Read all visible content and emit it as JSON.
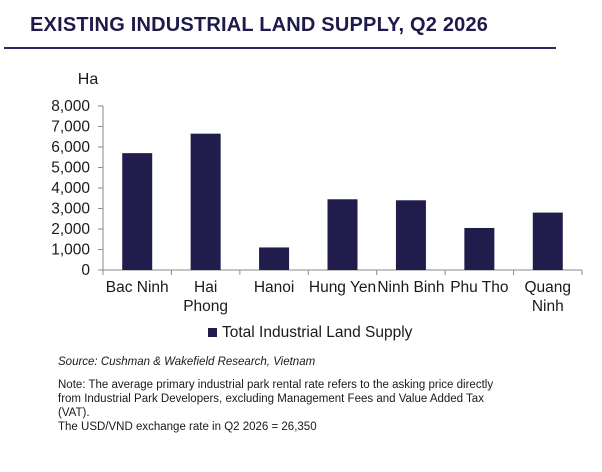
{
  "header": {
    "title": "EXISTING INDUSTRIAL LAND SUPPLY, Q2 2026"
  },
  "chart_data": {
    "type": "bar",
    "unit_label": "Ha",
    "categories": [
      [
        "Bac Ninh"
      ],
      [
        "Hai",
        "Phong"
      ],
      [
        "Hanoi"
      ],
      [
        "Hung Yen"
      ],
      [
        "Ninh Binh"
      ],
      [
        "Phu Tho"
      ],
      [
        "Quang",
        "Ninh"
      ]
    ],
    "series": [
      {
        "name": "Total Industrial Land Supply",
        "values": [
          5700,
          6650,
          1100,
          3450,
          3400,
          2050,
          2800
        ]
      }
    ],
    "ylim": [
      0,
      8000
    ],
    "yticks": [
      "0",
      "1,000",
      "2,000",
      "3,000",
      "4,000",
      "5,000",
      "6,000",
      "7,000",
      "8,000"
    ],
    "ytick_values": [
      0,
      1000,
      2000,
      3000,
      4000,
      5000,
      6000,
      7000,
      8000
    ],
    "legend_position": "bottom",
    "grid": false,
    "colors": {
      "bar": "#201c4c",
      "axis": "#8a8a8a"
    }
  },
  "footer": {
    "source": "Source: Cushman & Wakefield Research, Vietnam",
    "note_lines": [
      "Note: The average primary industrial park rental rate refers to the asking price directly",
      "from Industrial Park Developers, excluding Management Fees and Value Added Tax",
      "(VAT).",
      "The USD/VND exchange rate in Q2 2026 = 26,350"
    ]
  }
}
